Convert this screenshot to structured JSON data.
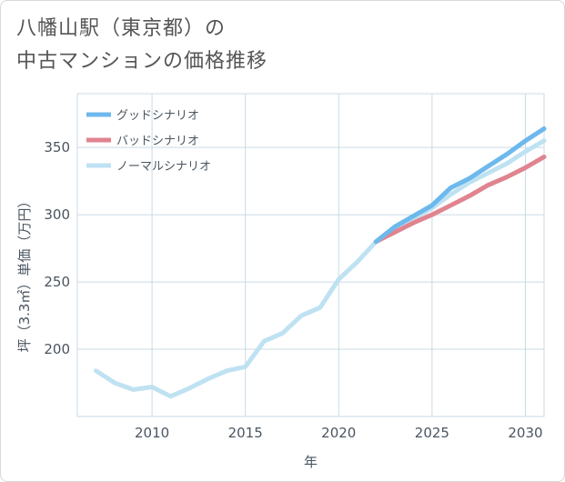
{
  "title_lines": [
    "八幡山駅（東京都）の",
    "中古マンションの価格推移"
  ],
  "chart_data": {
    "type": "line",
    "xlabel": "年",
    "ylabel": "坪（3.3㎡）単価（万円）",
    "xlim": [
      2006,
      2031
    ],
    "ylim": [
      150,
      390
    ],
    "xticks": [
      2010,
      2015,
      2020,
      2025,
      2030
    ],
    "yticks": [
      200,
      250,
      300,
      350
    ],
    "grid": true,
    "legend_position": "top-left",
    "series": [
      {
        "name": "グッドシナリオ",
        "color": "#6db8ec",
        "x": [
          2022,
          2023,
          2024,
          2025,
          2026,
          2027,
          2028,
          2029,
          2030,
          2031
        ],
        "y": [
          280,
          291,
          299,
          307,
          320,
          327,
          336,
          345,
          355,
          364
        ]
      },
      {
        "name": "バッドシナリオ",
        "color": "#e0848f",
        "x": [
          2022,
          2023,
          2024,
          2025,
          2026,
          2027,
          2028,
          2029,
          2030,
          2031
        ],
        "y": [
          280,
          287,
          294,
          300,
          307,
          314,
          322,
          328,
          335,
          343
        ]
      },
      {
        "name": "ノーマルシナリオ",
        "color": "#bfe2f2",
        "x": [
          2007,
          2008,
          2009,
          2010,
          2011,
          2012,
          2013,
          2014,
          2015,
          2016,
          2017,
          2018,
          2019,
          2020,
          2021,
          2022,
          2023,
          2024,
          2025,
          2026,
          2027,
          2028,
          2029,
          2030,
          2031
        ],
        "y": [
          184,
          175,
          170,
          172,
          165,
          171,
          178,
          184,
          187,
          206,
          212,
          225,
          231,
          252,
          265,
          280,
          289,
          297,
          305,
          315,
          324,
          331,
          338,
          347,
          355
        ]
      }
    ]
  }
}
